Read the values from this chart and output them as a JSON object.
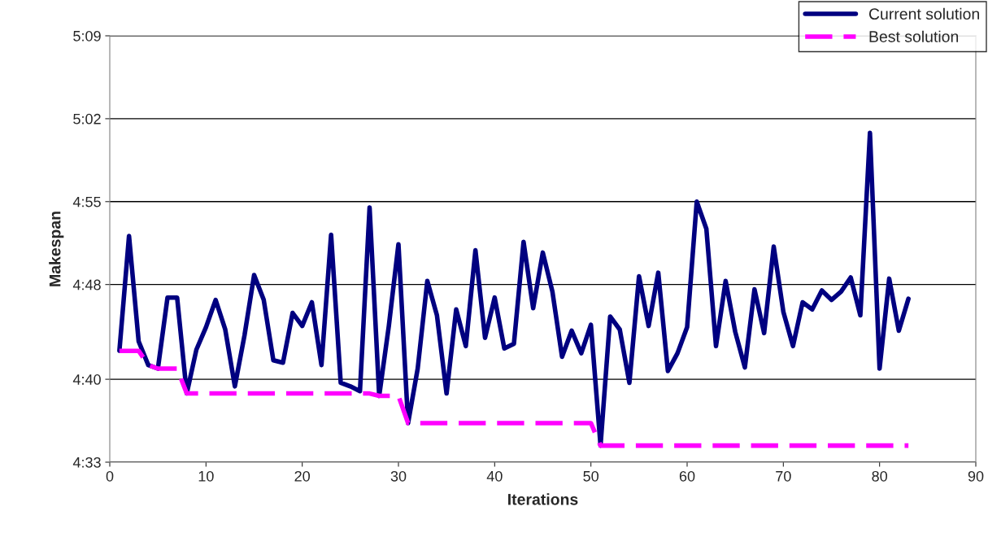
{
  "chart_data": {
    "type": "line",
    "xlabel": "Iterations",
    "ylabel": "Makespan",
    "x": [
      1,
      2,
      3,
      4,
      5,
      6,
      7,
      8,
      9,
      10,
      11,
      12,
      13,
      14,
      15,
      16,
      17,
      18,
      19,
      20,
      21,
      22,
      23,
      24,
      25,
      26,
      27,
      28,
      29,
      30,
      31,
      32,
      33,
      34,
      35,
      36,
      37,
      38,
      39,
      40,
      41,
      42,
      43,
      44,
      45,
      46,
      47,
      48,
      49,
      50,
      51,
      52,
      53,
      54,
      55,
      56,
      57,
      58,
      59,
      60,
      61,
      62,
      63,
      64,
      65,
      66,
      67,
      68,
      69,
      70,
      71,
      72,
      73,
      74,
      75,
      76,
      77,
      78,
      79,
      80,
      81,
      82,
      83
    ],
    "series": [
      {
        "name": "Current solution",
        "color": "#000080",
        "line_style": "solid",
        "values": [
          282.4,
          292.1,
          283.2,
          281.2,
          280.9,
          286.9,
          286.9,
          278.8,
          282.5,
          284.4,
          286.7,
          284.2,
          279.4,
          283.7,
          288.8,
          286.7,
          281.6,
          281.4,
          285.6,
          284.5,
          286.5,
          281.2,
          292.2,
          279.7,
          279.4,
          279.0,
          294.5,
          278.6,
          284.5,
          291.4,
          276.3,
          280.9,
          288.3,
          285.4,
          278.8,
          285.9,
          282.8,
          290.9,
          283.5,
          286.9,
          282.6,
          283.0,
          291.6,
          286.0,
          290.7,
          287.4,
          281.9,
          284.1,
          282.2,
          284.6,
          274.4,
          285.3,
          284.2,
          279.7,
          288.7,
          284.5,
          289.0,
          280.7,
          282.2,
          284.4,
          295.0,
          292.7,
          282.8,
          288.3,
          284.0,
          281.0,
          287.6,
          283.9,
          291.2,
          285.7,
          282.8,
          286.5,
          285.9,
          287.5,
          286.7,
          287.4,
          288.6,
          285.4,
          300.8,
          280.9,
          288.5,
          284.1,
          286.8
        ]
      },
      {
        "name": "Best solution",
        "color": "#ff00ff",
        "line_style": "dashed",
        "values": [
          282.4,
          282.4,
          282.4,
          281.2,
          280.9,
          280.9,
          280.9,
          278.8,
          278.8,
          278.8,
          278.8,
          278.8,
          278.8,
          278.8,
          278.8,
          278.8,
          278.8,
          278.8,
          278.8,
          278.8,
          278.8,
          278.8,
          278.8,
          278.8,
          278.8,
          278.8,
          278.8,
          278.6,
          278.6,
          278.6,
          276.3,
          276.3,
          276.3,
          276.3,
          276.3,
          276.3,
          276.3,
          276.3,
          276.3,
          276.3,
          276.3,
          276.3,
          276.3,
          276.3,
          276.3,
          276.3,
          276.3,
          276.3,
          276.3,
          276.3,
          274.4,
          274.4,
          274.4,
          274.4,
          274.4,
          274.4,
          274.4,
          274.4,
          274.4,
          274.4,
          274.4,
          274.4,
          274.4,
          274.4,
          274.4,
          274.4,
          274.4,
          274.4,
          274.4,
          274.4,
          274.4,
          274.4,
          274.4,
          274.4,
          274.4,
          274.4,
          274.4,
          274.4,
          274.4,
          274.4,
          274.4,
          274.4,
          274.4
        ]
      }
    ],
    "xlim": [
      0,
      90
    ],
    "xticks": [
      0,
      10,
      20,
      30,
      40,
      50,
      60,
      70,
      80,
      90
    ],
    "ylim": [
      273,
      309
    ],
    "yticks": [
      {
        "value": 273,
        "label": "4:33"
      },
      {
        "value": 280,
        "label": "4:40"
      },
      {
        "value": 288,
        "label": "4:48"
      },
      {
        "value": 295,
        "label": "4:55"
      },
      {
        "value": 302,
        "label": "5:02"
      },
      {
        "value": 309,
        "label": "5:09"
      }
    ],
    "grid": "y",
    "legend": "top right",
    "marker": "none"
  }
}
